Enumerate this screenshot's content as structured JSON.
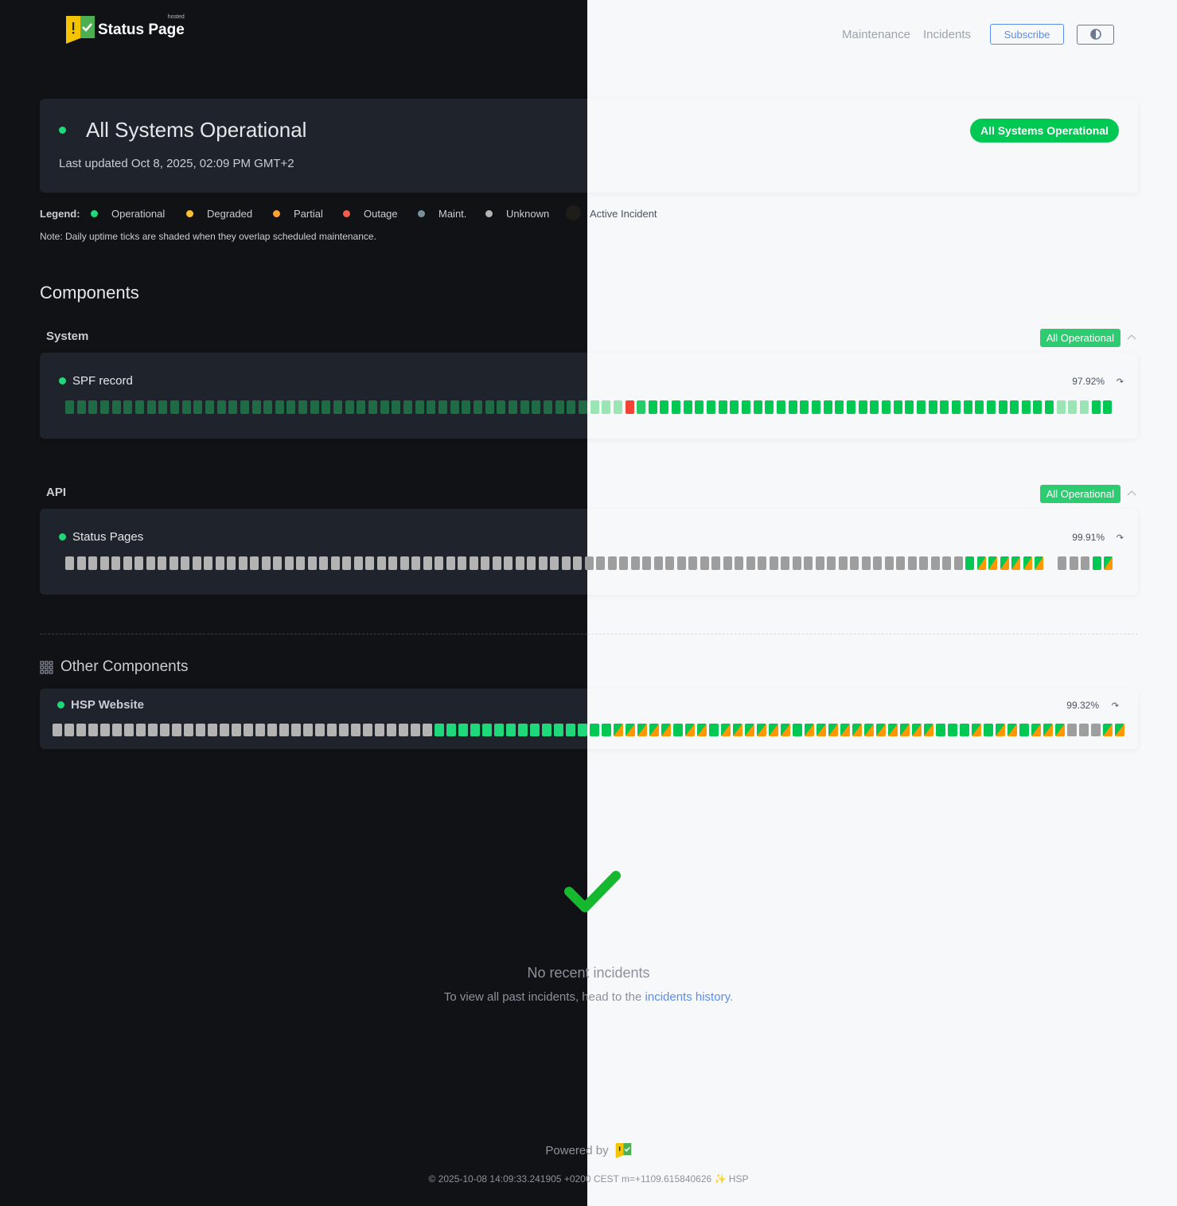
{
  "header": {
    "logo_text": "Status Page",
    "logo_small": "hosted",
    "nav": [
      "Maintenance",
      "Incidents"
    ],
    "subscribe": "Subscribe",
    "theme_toggle_icon": "half-circle-icon"
  },
  "overall": {
    "title": "All Systems Operational",
    "updated": "Last updated Oct 8, 2025, 02:09 PM GMT+2",
    "badge": "All Systems Operational"
  },
  "legend": {
    "label": "Legend:",
    "items": [
      {
        "label": "Operational",
        "color": "#1ed87a"
      },
      {
        "label": "Degraded",
        "color": "#fbc02d"
      },
      {
        "label": "Partial",
        "color": "#ffa030"
      },
      {
        "label": "Outage",
        "color": "#f45b4b"
      },
      {
        "label": "Maint.",
        "color": "#78909c"
      },
      {
        "label": "Unknown",
        "color": "#b3b3b3"
      },
      {
        "label": "Active Incident",
        "color": "#1f1d1a"
      }
    ],
    "note": "Note: Daily uptime ticks are shaded when they overlap scheduled maintenance."
  },
  "components_title": "Components",
  "groups": [
    {
      "name": "System",
      "badge": "All Operational",
      "components": [
        {
          "name": "SPF record",
          "uptime": "97.92%",
          "ticks": "ssssssssssssssssssssssssssssssssssssssssssssssssxlooooooooooooooooooooooooooooooooooosssoo"
        }
      ]
    },
    {
      "name": "API",
      "badge": "All Operational",
      "components": [
        {
          "name": "Status Pages",
          "uptime": "99.91%",
          "ticks": "uuuuuuuuuuuuuuuuuuuuuuuuuuuuuuuuuuuuuuuuuuuuuuuuuuuuuuuuuuuuuuuuuuuuuuuuuuuuuuopppppphuuuop"
        }
      ]
    }
  ],
  "other": {
    "title": "Other Components",
    "components": [
      {
        "name": "HSP Website",
        "uptime": "99.32%",
        "ticks": "uuuuuuuuuuuuuuuuuuuuuuuuuuuuuuuuooooooooooooooopppppoppoppppppopppppppppppooopoppopppuuupp"
      }
    ]
  },
  "tick_legend": {
    "o": "operational",
    "s": "operational (maintenance-shaded)",
    "l": "operational",
    "x": "outage",
    "u": "unknown",
    "p": "partial (maintenance)"
  },
  "incidents": {
    "title": "No recent incidents",
    "text": "To view all past incidents, head to the ",
    "link": "incidents history",
    "suffix": "."
  },
  "footer": {
    "powered": "Powered by",
    "copyright": "© 2025-10-08 14:09:33.241905 +0200 CEST m=+1109.615840626 ✨ HSP"
  }
}
